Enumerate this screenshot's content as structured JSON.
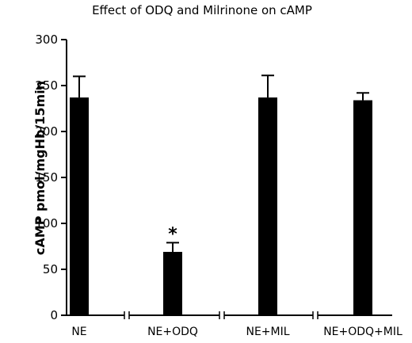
{
  "chart_data": {
    "type": "bar",
    "title": "Effect of ODQ and Milrinone on cAMP",
    "ylabel": "cAMP pmol/mgHb/15min",
    "xlabel": "",
    "categories": [
      "NE",
      "NE+ODQ",
      "NE+MIL",
      "NE+ODQ+MIL"
    ],
    "values": [
      237,
      69,
      237,
      234
    ],
    "errors": [
      23,
      10,
      24,
      8
    ],
    "ylim": [
      0,
      300
    ],
    "yticks": [
      0,
      50,
      100,
      150,
      200,
      250,
      300
    ],
    "annotations": [
      {
        "category": "NE+ODQ",
        "text": "*"
      }
    ],
    "axis_breaks": true,
    "grid": false,
    "bar_color": "#000000"
  }
}
